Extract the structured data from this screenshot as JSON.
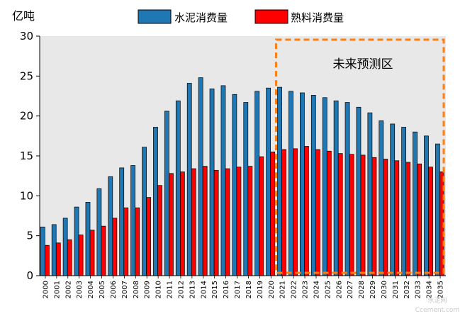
{
  "chart_data": {
    "type": "bar",
    "ylabel": "亿吨",
    "ylim": [
      0,
      30
    ],
    "yticks": [
      0,
      5,
      10,
      15,
      20,
      25,
      30
    ],
    "legend_position": "top-center",
    "grid": false,
    "annotation": "未来预测区",
    "categories": [
      "2000",
      "2001",
      "2002",
      "2003",
      "2004",
      "2005",
      "2006",
      "2007",
      "2008",
      "2009",
      "2010",
      "2011",
      "2012",
      "2013",
      "2014",
      "2015",
      "2016",
      "2017",
      "2018",
      "2019",
      "2020",
      "2021",
      "2022",
      "2023",
      "2024",
      "2025",
      "2026",
      "2027",
      "2028",
      "2029",
      "2030",
      "2031",
      "2032",
      "2033",
      "2034",
      "2035"
    ],
    "series": [
      {
        "name": "水泥消费量",
        "color": "#1f77b4",
        "values": [
          6.1,
          6.4,
          7.2,
          8.6,
          9.2,
          10.9,
          12.4,
          13.5,
          13.8,
          16.1,
          18.6,
          20.6,
          21.9,
          24.1,
          24.8,
          23.4,
          23.8,
          22.7,
          21.7,
          23.1,
          23.5,
          23.6,
          23.1,
          22.9,
          22.6,
          22.3,
          21.9,
          21.7,
          21.1,
          20.4,
          19.4,
          19.0,
          18.6,
          18.0,
          17.5,
          16.5
        ]
      },
      {
        "name": "熟料消费量",
        "color": "#ff0000",
        "values": [
          3.8,
          4.1,
          4.5,
          5.1,
          5.7,
          6.2,
          7.2,
          8.5,
          8.5,
          9.8,
          11.3,
          12.8,
          13.0,
          13.4,
          13.7,
          13.2,
          13.4,
          13.6,
          13.7,
          14.9,
          15.5,
          15.8,
          15.9,
          16.2,
          15.8,
          15.6,
          15.3,
          15.2,
          15.1,
          14.8,
          14.6,
          14.4,
          14.2,
          14.0,
          13.6,
          13.0
        ]
      }
    ]
  },
  "watermark": {
    "line1": "水泥网",
    "line2": "Ccement.com"
  }
}
